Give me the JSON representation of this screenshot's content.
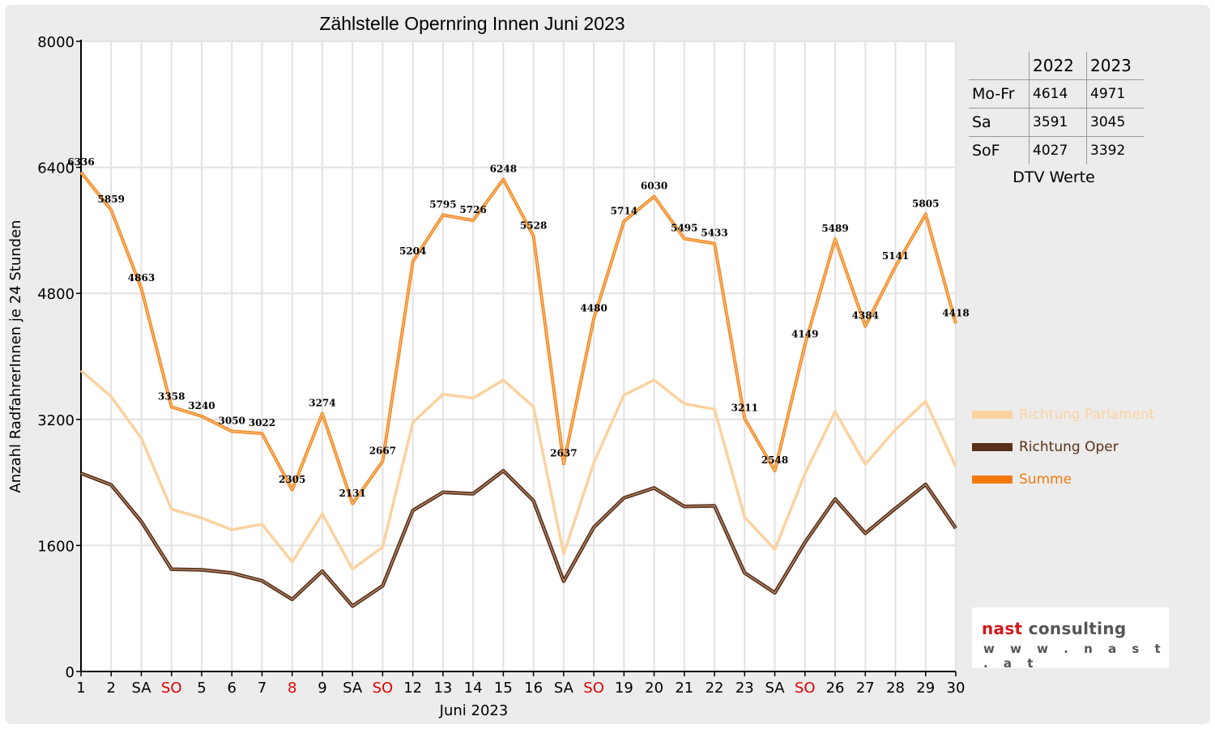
{
  "chart_data": {
    "type": "line",
    "title": "Zählstelle Opernring Innen Juni 2023",
    "xlabel": "Juni 2023",
    "ylabel": "Anzahl RadfahrerInnen je 24 Stunden",
    "ylim": [
      0,
      8000
    ],
    "yticks": [
      0,
      1600,
      3200,
      4800,
      6400,
      8000
    ],
    "grid": true,
    "legend_position": "right",
    "categories": [
      "1",
      "2",
      "SA",
      "SO",
      "5",
      "6",
      "7",
      "8",
      "9",
      "SA",
      "SO",
      "12",
      "13",
      "14",
      "15",
      "16",
      "SA",
      "SO",
      "19",
      "20",
      "21",
      "22",
      "23",
      "SA",
      "SO",
      "26",
      "27",
      "28",
      "29",
      "30"
    ],
    "category_colors": [
      "#000000",
      "#000000",
      "#000000",
      "#e00000",
      "#000000",
      "#000000",
      "#000000",
      "#e00000",
      "#000000",
      "#000000",
      "#e00000",
      "#000000",
      "#000000",
      "#000000",
      "#000000",
      "#000000",
      "#000000",
      "#e00000",
      "#000000",
      "#000000",
      "#000000",
      "#000000",
      "#000000",
      "#000000",
      "#e00000",
      "#000000",
      "#000000",
      "#000000",
      "#000000",
      "#000000"
    ],
    "series": [
      {
        "name": "Richtung Parlament",
        "color": "#fbd29f",
        "values": [
          3820,
          3490,
          2960,
          2060,
          1950,
          1800,
          1870,
          1390,
          2000,
          1300,
          1580,
          3160,
          3520,
          3470,
          3700,
          3360,
          1490,
          2650,
          3510,
          3700,
          3400,
          3330,
          1960,
          1550,
          2510,
          3300,
          2630,
          3070,
          3430,
          2600
        ]
      },
      {
        "name": "Richtung Oper",
        "color": "#5a3018",
        "values": [
          2516,
          2369,
          1903,
          1298,
          1290,
          1250,
          1152,
          915,
          1274,
          831,
          1087,
          2044,
          2275,
          2256,
          2548,
          2168,
          1147,
          1830,
          2204,
          2330,
          2095,
          2103,
          1251,
          998,
          1639,
          2189,
          1754,
          2071,
          2375,
          1818
        ]
      },
      {
        "name": "Summe",
        "color": "#f28a23",
        "values": [
          6336,
          5859,
          4863,
          3358,
          3240,
          3050,
          3022,
          2305,
          3274,
          2131,
          2667,
          5204,
          5795,
          5726,
          6248,
          5528,
          2637,
          4480,
          5714,
          6030,
          5495,
          5433,
          3211,
          2548,
          4149,
          5489,
          4384,
          5141,
          5805,
          4418
        ],
        "labels": [
          "6336",
          "5859",
          "4863",
          "3358",
          "3240",
          "3050",
          "3022",
          "2305",
          "3274",
          "2131",
          "2667",
          "5204",
          "5795",
          "5726",
          "6248",
          "5528",
          "2637",
          "4480",
          "5714",
          "6030",
          "5495",
          "5433",
          "3211",
          "2548",
          "4149",
          "5489",
          "4384",
          "5141",
          "5805",
          "4418"
        ]
      }
    ]
  },
  "legend": [
    {
      "label": "Richtung Parlament",
      "color": "#fbd29f"
    },
    {
      "label": "Richtung Oper",
      "color": "#5a3018"
    },
    {
      "label": "Summe",
      "color": "#f28a23"
    }
  ],
  "dtv_table": {
    "caption": "DTV Werte",
    "headers": [
      "",
      "2022",
      "2023"
    ],
    "rows": [
      {
        "label": "Mo-Fr",
        "v2022": "4614",
        "v2023": "4971"
      },
      {
        "label": "Sa",
        "v2022": "3591",
        "v2023": "3045"
      },
      {
        "label": "SoF",
        "v2022": "4027",
        "v2023": "3392"
      }
    ]
  },
  "logo": {
    "brand_word1": "nast",
    "brand_word2": "consulting",
    "url": "w w w . n a s t . a t"
  }
}
